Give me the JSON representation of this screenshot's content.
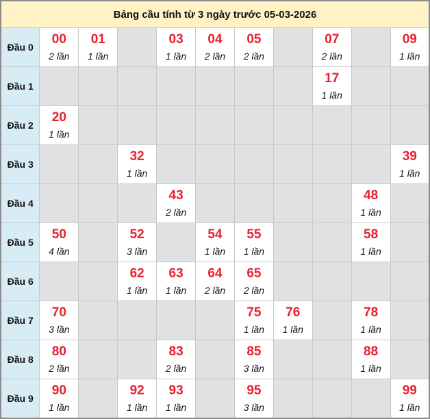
{
  "title": "Bảng cầu tính từ 3 ngày trước 05-03-2026",
  "colors": {
    "number": "#e8202f",
    "header_bg": "#d8ecf6",
    "title_bg": "#fff2c4",
    "empty_bg": "#e0e1e3"
  },
  "rows": [
    {
      "label": "Đầu 0",
      "cells": [
        {
          "num": "00",
          "count": "2 lần"
        },
        {
          "num": "01",
          "count": "1 lần"
        },
        null,
        {
          "num": "03",
          "count": "1 lần"
        },
        {
          "num": "04",
          "count": "2 lần"
        },
        {
          "num": "05",
          "count": "2 lần"
        },
        null,
        {
          "num": "07",
          "count": "2 lần"
        },
        null,
        {
          "num": "09",
          "count": "1 lần"
        }
      ]
    },
    {
      "label": "Đầu 1",
      "cells": [
        null,
        null,
        null,
        null,
        null,
        null,
        null,
        {
          "num": "17",
          "count": "1 lần"
        },
        null,
        null
      ]
    },
    {
      "label": "Đầu 2",
      "cells": [
        {
          "num": "20",
          "count": "1 lần"
        },
        null,
        null,
        null,
        null,
        null,
        null,
        null,
        null,
        null
      ]
    },
    {
      "label": "Đầu 3",
      "cells": [
        null,
        null,
        {
          "num": "32",
          "count": "1 lần"
        },
        null,
        null,
        null,
        null,
        null,
        null,
        {
          "num": "39",
          "count": "1 lần"
        }
      ]
    },
    {
      "label": "Đầu 4",
      "cells": [
        null,
        null,
        null,
        {
          "num": "43",
          "count": "2 lần"
        },
        null,
        null,
        null,
        null,
        {
          "num": "48",
          "count": "1 lần"
        },
        null
      ]
    },
    {
      "label": "Đầu 5",
      "cells": [
        {
          "num": "50",
          "count": "4 lần"
        },
        null,
        {
          "num": "52",
          "count": "3 lần"
        },
        null,
        {
          "num": "54",
          "count": "1 lần"
        },
        {
          "num": "55",
          "count": "1 lần"
        },
        null,
        null,
        {
          "num": "58",
          "count": "1 lần"
        },
        null
      ]
    },
    {
      "label": "Đầu 6",
      "cells": [
        null,
        null,
        {
          "num": "62",
          "count": "1 lần"
        },
        {
          "num": "63",
          "count": "1 lần"
        },
        {
          "num": "64",
          "count": "2 lần"
        },
        {
          "num": "65",
          "count": "2 lần"
        },
        null,
        null,
        null,
        null
      ]
    },
    {
      "label": "Đầu 7",
      "cells": [
        {
          "num": "70",
          "count": "3 lần"
        },
        null,
        null,
        null,
        null,
        {
          "num": "75",
          "count": "1 lần"
        },
        {
          "num": "76",
          "count": "1 lần"
        },
        null,
        {
          "num": "78",
          "count": "1 lần"
        },
        null
      ]
    },
    {
      "label": "Đầu 8",
      "cells": [
        {
          "num": "80",
          "count": "2 lần"
        },
        null,
        null,
        {
          "num": "83",
          "count": "2 lần"
        },
        null,
        {
          "num": "85",
          "count": "3 lần"
        },
        null,
        null,
        {
          "num": "88",
          "count": "1 lần"
        },
        null
      ]
    },
    {
      "label": "Đầu 9",
      "cells": [
        {
          "num": "90",
          "count": "1 lần"
        },
        null,
        {
          "num": "92",
          "count": "1 lần"
        },
        {
          "num": "93",
          "count": "1 lần"
        },
        null,
        {
          "num": "95",
          "count": "3 lần"
        },
        null,
        null,
        null,
        {
          "num": "99",
          "count": "1 lần"
        }
      ]
    }
  ]
}
